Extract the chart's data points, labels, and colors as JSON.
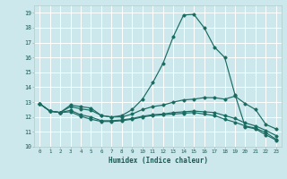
{
  "xlabel": "Humidex (Indice chaleur)",
  "background_color": "#cce8ec",
  "grid_color": "#ffffff",
  "line_color": "#1a6b62",
  "xlim": [
    -0.5,
    23.5
  ],
  "ylim": [
    10,
    19.5
  ],
  "xticks": [
    0,
    1,
    2,
    3,
    4,
    5,
    6,
    7,
    8,
    9,
    10,
    11,
    12,
    13,
    14,
    15,
    16,
    17,
    18,
    19,
    20,
    21,
    22,
    23
  ],
  "yticks": [
    10,
    11,
    12,
    13,
    14,
    15,
    16,
    17,
    18,
    19
  ],
  "series": [
    {
      "x": [
        0,
        1,
        2,
        3,
        4,
        5,
        6,
        7,
        8,
        9,
        10,
        11,
        12,
        13,
        14,
        15,
        16,
        17,
        18,
        19,
        20,
        21,
        22,
        23
      ],
      "y": [
        12.9,
        12.4,
        12.3,
        12.8,
        12.7,
        12.6,
        12.1,
        12.0,
        12.1,
        12.5,
        13.2,
        14.3,
        15.6,
        17.4,
        18.85,
        18.9,
        18.0,
        16.7,
        16.0,
        13.5,
        11.35,
        11.2,
        10.8,
        10.45
      ]
    },
    {
      "x": [
        0,
        1,
        2,
        3,
        4,
        5,
        6,
        7,
        8,
        9,
        10,
        11,
        12,
        13,
        14,
        15,
        16,
        17,
        18,
        19,
        20,
        21,
        22,
        23
      ],
      "y": [
        12.9,
        12.4,
        12.3,
        12.7,
        12.55,
        12.45,
        12.1,
        12.0,
        12.0,
        12.2,
        12.5,
        12.7,
        12.8,
        13.0,
        13.15,
        13.2,
        13.3,
        13.3,
        13.2,
        13.4,
        12.9,
        12.5,
        11.5,
        11.2
      ]
    },
    {
      "x": [
        0,
        1,
        2,
        3,
        4,
        5,
        6,
        7,
        8,
        9,
        10,
        11,
        12,
        13,
        14,
        15,
        16,
        17,
        18,
        19,
        20,
        21,
        22,
        23
      ],
      "y": [
        12.9,
        12.4,
        12.3,
        12.45,
        12.15,
        12.0,
        11.75,
        11.75,
        11.8,
        11.9,
        12.05,
        12.15,
        12.2,
        12.3,
        12.35,
        12.4,
        12.35,
        12.3,
        12.1,
        11.9,
        11.6,
        11.4,
        11.1,
        10.75
      ]
    },
    {
      "x": [
        0,
        1,
        2,
        3,
        4,
        5,
        6,
        7,
        8,
        9,
        10,
        11,
        12,
        13,
        14,
        15,
        16,
        17,
        18,
        19,
        20,
        21,
        22,
        23
      ],
      "y": [
        12.9,
        12.4,
        12.3,
        12.35,
        12.05,
        11.85,
        11.7,
        11.7,
        11.75,
        11.85,
        12.0,
        12.1,
        12.15,
        12.2,
        12.25,
        12.3,
        12.2,
        12.1,
        11.85,
        11.65,
        11.4,
        11.25,
        10.95,
        10.5
      ]
    }
  ]
}
